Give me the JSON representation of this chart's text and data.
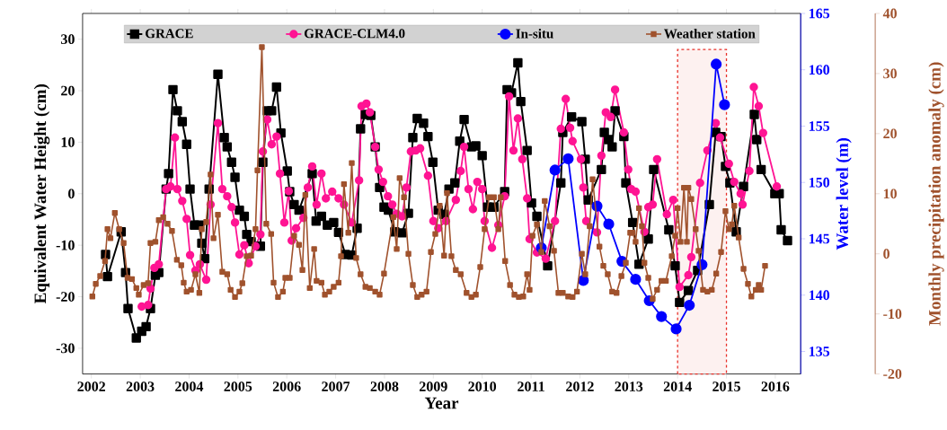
{
  "chart_data": {
    "type": "line",
    "xlabel": "Year",
    "ylabel": "Equivalent Water Height (cm)",
    "y2label": "Water level (m)",
    "y3label": "Monthly precipitation anomaly (cm)",
    "xlim": [
      2001.82,
      2016.52
    ],
    "xticks": [
      2002,
      2003,
      2004,
      2005,
      2006,
      2007,
      2008,
      2009,
      2010,
      2011,
      2012,
      2013,
      2014,
      2015,
      2016
    ],
    "ylim": [
      -35,
      35
    ],
    "yticks": [
      -30,
      -20,
      -10,
      0,
      10,
      20,
      30
    ],
    "y2lim": [
      133,
      165
    ],
    "y2ticks": [
      135,
      140,
      145,
      150,
      155,
      160,
      165
    ],
    "y3lim": [
      -20,
      40
    ],
    "y3ticks": [
      -20,
      -10,
      0,
      10,
      20,
      30,
      40
    ],
    "legend": "top",
    "line_style": "solid",
    "bands": [
      {
        "axis": "x",
        "from": 2014,
        "to": 2015,
        "color": "#e8322b"
      }
    ],
    "series": [
      {
        "name": "GRACE",
        "color": "#000000",
        "marker": "square",
        "axis": "y",
        "x": [
          2002.29,
          2002.33,
          2002.61,
          2002.7,
          2002.75,
          2002.92,
          2003.03,
          2003.12,
          2003.21,
          2003.31,
          2003.38,
          2003.53,
          2003.58,
          2003.67,
          2003.76,
          2003.86,
          2003.95,
          2004.02,
          2004.11,
          2004.21,
          2004.26,
          2004.32,
          2004.41,
          2004.59,
          2004.72,
          2004.78,
          2004.87,
          2004.94,
          2005.03,
          2005.13,
          2005.18,
          2005.27,
          2005.46,
          2005.51,
          2005.6,
          2005.69,
          2005.79,
          2005.88,
          2006.01,
          2006.06,
          2006.15,
          2006.25,
          2006.52,
          2006.6,
          2006.71,
          2006.83,
          2006.96,
          2007.06,
          2007.2,
          2007.33,
          2007.44,
          2007.51,
          2007.61,
          2007.72,
          2007.81,
          2007.9,
          2007.99,
          2008.08,
          2008.21,
          2008.36,
          2008.49,
          2008.58,
          2008.67,
          2008.8,
          2008.89,
          2008.99,
          2009.1,
          2009.22,
          2009.32,
          2009.44,
          2009.54,
          2009.63,
          2009.78,
          2009.87,
          2010.0,
          2010.11,
          2010.24,
          2010.46,
          2010.51,
          2010.6,
          2010.73,
          2010.79,
          2010.92,
          2011.01,
          2011.12,
          2011.34,
          2011.61,
          2011.65,
          2011.83,
          2012.04,
          2012.11,
          2012.17,
          2012.44,
          2012.5,
          2012.59,
          2012.66,
          2012.72,
          2012.9,
          2012.94,
          2013.08,
          2013.21,
          2013.4,
          2013.51,
          2013.82,
          2013.95,
          2014.04,
          2014.22,
          2014.41,
          2014.65,
          2014.78,
          2014.89,
          2014.98,
          2015.07,
          2015.2,
          2015.35,
          2015.57,
          2015.62,
          2015.71,
          2015.99,
          2016.08,
          2016.12,
          2016.25
        ],
        "values": [
          -11.8,
          -16.1,
          -7.4,
          -15.3,
          -22.3,
          -28,
          -26.7,
          -25.8,
          -22.3,
          -15.8,
          -15.3,
          0.9,
          3.9,
          20.2,
          16.1,
          14.0,
          9.6,
          0.9,
          -6.1,
          -6.1,
          -9.6,
          -12.6,
          0.9,
          23.2,
          10.9,
          9.1,
          6.1,
          3.2,
          -3.2,
          -4.4,
          -7.9,
          -9.3,
          -10.2,
          6.1,
          16.1,
          16.1,
          20.7,
          11.8,
          4.4,
          0.4,
          -2.1,
          -3.2,
          3.9,
          -5.3,
          -4.4,
          -6.1,
          -5.6,
          -7.5,
          -11.8,
          -11.9,
          -6.7,
          12.6,
          15.4,
          15.2,
          9.1,
          1.2,
          -2.6,
          -3.2,
          -7.4,
          -7.6,
          -3.8,
          10.9,
          14.6,
          13.7,
          11.1,
          6.1,
          -3.2,
          -4.0,
          0.9,
          2.1,
          10.2,
          14.4,
          9.1,
          9.3,
          7.4,
          -2.6,
          -2.6,
          0.4,
          20.2,
          19.6,
          25.4,
          17.9,
          8.4,
          -1.8,
          -4.4,
          -14,
          2.1,
          11.9,
          14.9,
          14.0,
          6.7,
          -1.2,
          4.7,
          11.9,
          10.5,
          9.1,
          16.1,
          11.1,
          2.1,
          -5.6,
          -13.7,
          -8.8,
          4.7,
          -7.0,
          -14,
          -21.1,
          -18.8,
          -14.9,
          -2.1,
          11.9,
          11.1,
          5.3,
          2.1,
          -7.4,
          1.4,
          15.4,
          10.5,
          4.7,
          0,
          0,
          -7.0,
          -9.1
        ]
      },
      {
        "name": "GRACE-CLM4.0",
        "color": "#ff1493",
        "marker": "circle",
        "axis": "y",
        "x": [
          2003.03,
          2003.16,
          2003.21,
          2003.29,
          2003.38,
          2003.53,
          2003.62,
          2003.71,
          2003.76,
          2003.86,
          2003.95,
          2004.02,
          2004.13,
          2004.22,
          2004.35,
          2004.44,
          2004.59,
          2004.68,
          2004.78,
          2004.87,
          2004.94,
          2005.03,
          2005.13,
          2005.22,
          2005.36,
          2005.46,
          2005.51,
          2005.6,
          2005.69,
          2005.79,
          2005.86,
          2005.95,
          2006.04,
          2006.1,
          2006.19,
          2006.34,
          2006.43,
          2006.52,
          2006.61,
          2006.71,
          2006.8,
          2006.93,
          2007.06,
          2007.17,
          2007.33,
          2007.48,
          2007.53,
          2007.63,
          2007.7,
          2007.81,
          2007.88,
          2007.97,
          2008.07,
          2008.16,
          2008.25,
          2008.36,
          2008.45,
          2008.54,
          2008.64,
          2008.73,
          2008.89,
          2009.0,
          2009.1,
          2009.26,
          2009.46,
          2009.56,
          2009.63,
          2009.72,
          2009.81,
          2009.9,
          2010.0,
          2010.05,
          2010.2,
          2010.33,
          2010.46,
          2010.55,
          2010.64,
          2010.73,
          2010.82,
          2010.92,
          2010.97,
          2011.12,
          2011.3,
          2011.49,
          2011.61,
          2011.71,
          2011.8,
          2011.85,
          2012.02,
          2012.07,
          2012.13,
          2012.35,
          2012.44,
          2012.53,
          2012.63,
          2012.72,
          2012.9,
          2012.99,
          2013.05,
          2013.14,
          2013.32,
          2013.4,
          2013.49,
          2013.58,
          2013.78,
          2013.91,
          2014.04,
          2014.22,
          2014.28,
          2014.46,
          2014.61,
          2014.78,
          2014.87,
          2015.05,
          2015.16,
          2015.29,
          2015.33,
          2015.47,
          2015.56,
          2015.66,
          2015.75,
          2016.03
        ],
        "values": [
          -21.9,
          -21.6,
          -18.4,
          -14.4,
          -13.7,
          0.9,
          1.4,
          10.9,
          0.9,
          -1.4,
          -4.9,
          -11.9,
          -14.9,
          -13.7,
          -16.7,
          -2.1,
          13.7,
          0.9,
          -0.5,
          -2.6,
          -5.6,
          -11.8,
          -10,
          -13.5,
          -10.2,
          -7.9,
          8.2,
          14.4,
          9.6,
          11.1,
          3.9,
          -5.6,
          0.5,
          -9.1,
          -6.7,
          -4.7,
          1.2,
          5.3,
          -2.1,
          3.9,
          -0.9,
          0.4,
          -0.9,
          -2.1,
          -5.6,
          2.6,
          17.0,
          17.5,
          15.8,
          9.1,
          4.7,
          2.3,
          -0.5,
          -2.1,
          -3.9,
          -4.4,
          1.2,
          8.2,
          8.4,
          8.8,
          3.5,
          -5.3,
          -6.7,
          -5.3,
          -1.2,
          4.4,
          9.1,
          0.9,
          -3.0,
          2.3,
          0.9,
          -5.3,
          -10.5,
          -6.1,
          -0.5,
          18.9,
          8.4,
          14.6,
          6.7,
          -0.9,
          -8.8,
          -11.4,
          -12.6,
          -5.3,
          12.6,
          18.4,
          12.8,
          10.2,
          6.7,
          1.2,
          -5.3,
          -7.5,
          7.4,
          15.8,
          14.9,
          20.2,
          11.9,
          4.7,
          0.9,
          0.4,
          -7.4,
          -2.6,
          -2.1,
          6.7,
          -4.0,
          -1.2,
          -18.1,
          -15.8,
          -12.3,
          2.1,
          8.4,
          13.7,
          10.9,
          5.8,
          2.3,
          0,
          -2.1,
          4.4,
          20.7,
          17.0,
          11.8,
          1.4
        ]
      },
      {
        "name": "In-situ",
        "color": "#0000ff",
        "marker": "circle",
        "axis": "y2",
        "x": [
          2011.21,
          2011.49,
          2011.76,
          2012.07,
          2012.35,
          2012.59,
          2012.86,
          2013.14,
          2013.42,
          2013.67,
          2013.97,
          2014.24,
          2014.5,
          2014.79,
          2014.96
        ],
        "values": [
          144.2,
          151.1,
          152.1,
          141.3,
          147.9,
          146.3,
          143.0,
          141.4,
          139.5,
          138.1,
          137.0,
          139.1,
          142.7,
          160.5,
          156.9
        ]
      },
      {
        "name": "Weather station",
        "color": "#a0522d",
        "marker": "square",
        "axis": "y3",
        "x": [
          2002.02,
          2002.09,
          2002.18,
          2002.28,
          2002.33,
          2002.39,
          2002.48,
          2002.57,
          2002.66,
          2002.74,
          2002.83,
          2002.92,
          2002.97,
          2003.07,
          2003.16,
          2003.21,
          2003.31,
          2003.38,
          2003.47,
          2003.56,
          2003.65,
          2003.75,
          2003.84,
          2003.89,
          2003.95,
          2004.04,
          2004.13,
          2004.21,
          2004.26,
          2004.35,
          2004.44,
          2004.5,
          2004.59,
          2004.68,
          2004.78,
          2004.85,
          2004.94,
          2005.03,
          2005.09,
          2005.18,
          2005.27,
          2005.36,
          2005.4,
          2005.49,
          2005.58,
          2005.68,
          2005.73,
          2005.82,
          2005.92,
          2005.97,
          2006.06,
          2006.15,
          2006.25,
          2006.32,
          2006.38,
          2006.47,
          2006.56,
          2006.61,
          2006.71,
          2006.78,
          2006.87,
          2006.96,
          2007.06,
          2007.11,
          2007.17,
          2007.26,
          2007.33,
          2007.42,
          2007.51,
          2007.61,
          2007.7,
          2007.81,
          2007.9,
          2007.99,
          2008.18,
          2008.25,
          2008.31,
          2008.4,
          2008.49,
          2008.58,
          2008.67,
          2008.76,
          2008.86,
          2008.95,
          2009.04,
          2009.13,
          2009.22,
          2009.28,
          2009.37,
          2009.46,
          2009.56,
          2009.68,
          2009.78,
          2009.87,
          2009.96,
          2010.05,
          2010.14,
          2010.24,
          2010.33,
          2010.38,
          2010.47,
          2010.57,
          2010.66,
          2010.75,
          2010.84,
          2010.92,
          2010.97,
          2011.03,
          2011.12,
          2011.21,
          2011.28,
          2011.38,
          2011.47,
          2011.56,
          2011.65,
          2011.76,
          2011.85,
          2011.94,
          2012.04,
          2012.11,
          2012.2,
          2012.26,
          2012.4,
          2012.48,
          2012.57,
          2012.66,
          2012.75,
          2012.85,
          2012.94,
          2013.03,
          2013.08,
          2013.14,
          2013.21,
          2013.27,
          2013.32,
          2013.4,
          2013.49,
          2013.58,
          2013.67,
          2013.76,
          2013.88,
          2013.95,
          2014.0,
          2014.06,
          2014.13,
          2014.19,
          2014.22,
          2014.28,
          2014.37,
          2014.43,
          2014.52,
          2014.61,
          2014.7,
          2014.79,
          2014.89,
          2014.98,
          2015.05,
          2015.11,
          2015.16,
          2015.25,
          2015.35,
          2015.44,
          2015.51,
          2015.6,
          2015.66,
          2015.71,
          2015.79
        ],
        "values": [
          -7.1,
          -5.0,
          -3.7,
          -1.2,
          4.1,
          2.6,
          6.8,
          4.1,
          1.8,
          -4.0,
          -4.2,
          -5.7,
          -6.8,
          -5.2,
          -4.9,
          1.8,
          2.0,
          5.6,
          6.1,
          5.0,
          3.8,
          -1.0,
          -1.9,
          -4.8,
          -6.3,
          -6.0,
          -3.4,
          -6.5,
          4.1,
          5.3,
          13.2,
          2.6,
          6.5,
          -3.0,
          -3.4,
          -6.0,
          -7.2,
          -6.3,
          -4.9,
          -0.4,
          -0.3,
          4.1,
          13.9,
          34.4,
          5.0,
          3.3,
          -4.8,
          -7.2,
          -6.3,
          -4.0,
          -4.0,
          3.0,
          1.5,
          -2.7,
          9.8,
          -5.7,
          0.8,
          -4.5,
          -4.8,
          -6.8,
          -6.3,
          -5.5,
          -4.8,
          -0.4,
          11.6,
          3.5,
          15.1,
          -0.7,
          -3.4,
          -5.5,
          -5.7,
          -6.3,
          -6.8,
          -3.3,
          6.1,
          0.8,
          12.6,
          9.4,
          0,
          -5.2,
          -7.2,
          -6.8,
          -6.3,
          0.3,
          3.3,
          8.0,
          -0.3,
          10.1,
          -0.4,
          -2.7,
          -3.4,
          -6.5,
          -7.2,
          -6.8,
          -2.2,
          4.1,
          9.4,
          9.4,
          4.1,
          9.4,
          -1.2,
          -5.2,
          -6.8,
          -7.2,
          -7.1,
          -3.4,
          -6.0,
          3.0,
          4.9,
          0.3,
          8.8,
          4.6,
          0.5,
          -6.5,
          -6.5,
          -7.1,
          -7.2,
          -6.3,
          0,
          -3.4,
          4.6,
          12.4,
          1.2,
          -2.0,
          -3.4,
          -6.3,
          -6.5,
          -3.7,
          -1.5,
          3.5,
          3.5,
          2.0,
          7.6,
          4.6,
          -1.5,
          -4.0,
          -7.5,
          -6.0,
          -4.5,
          -4.5,
          -0.4,
          3.0,
          7.6,
          2.0,
          11.0,
          2.0,
          11.0,
          9.1,
          4.1,
          0.5,
          -6.0,
          -6.3,
          -6.0,
          -3.3,
          0.3,
          7.1,
          4.1,
          4.9,
          8.0,
          2.7,
          -2.5,
          -5.0,
          -7.1,
          -6.0,
          -5.2,
          -6.0,
          -2.0
        ]
      }
    ]
  }
}
